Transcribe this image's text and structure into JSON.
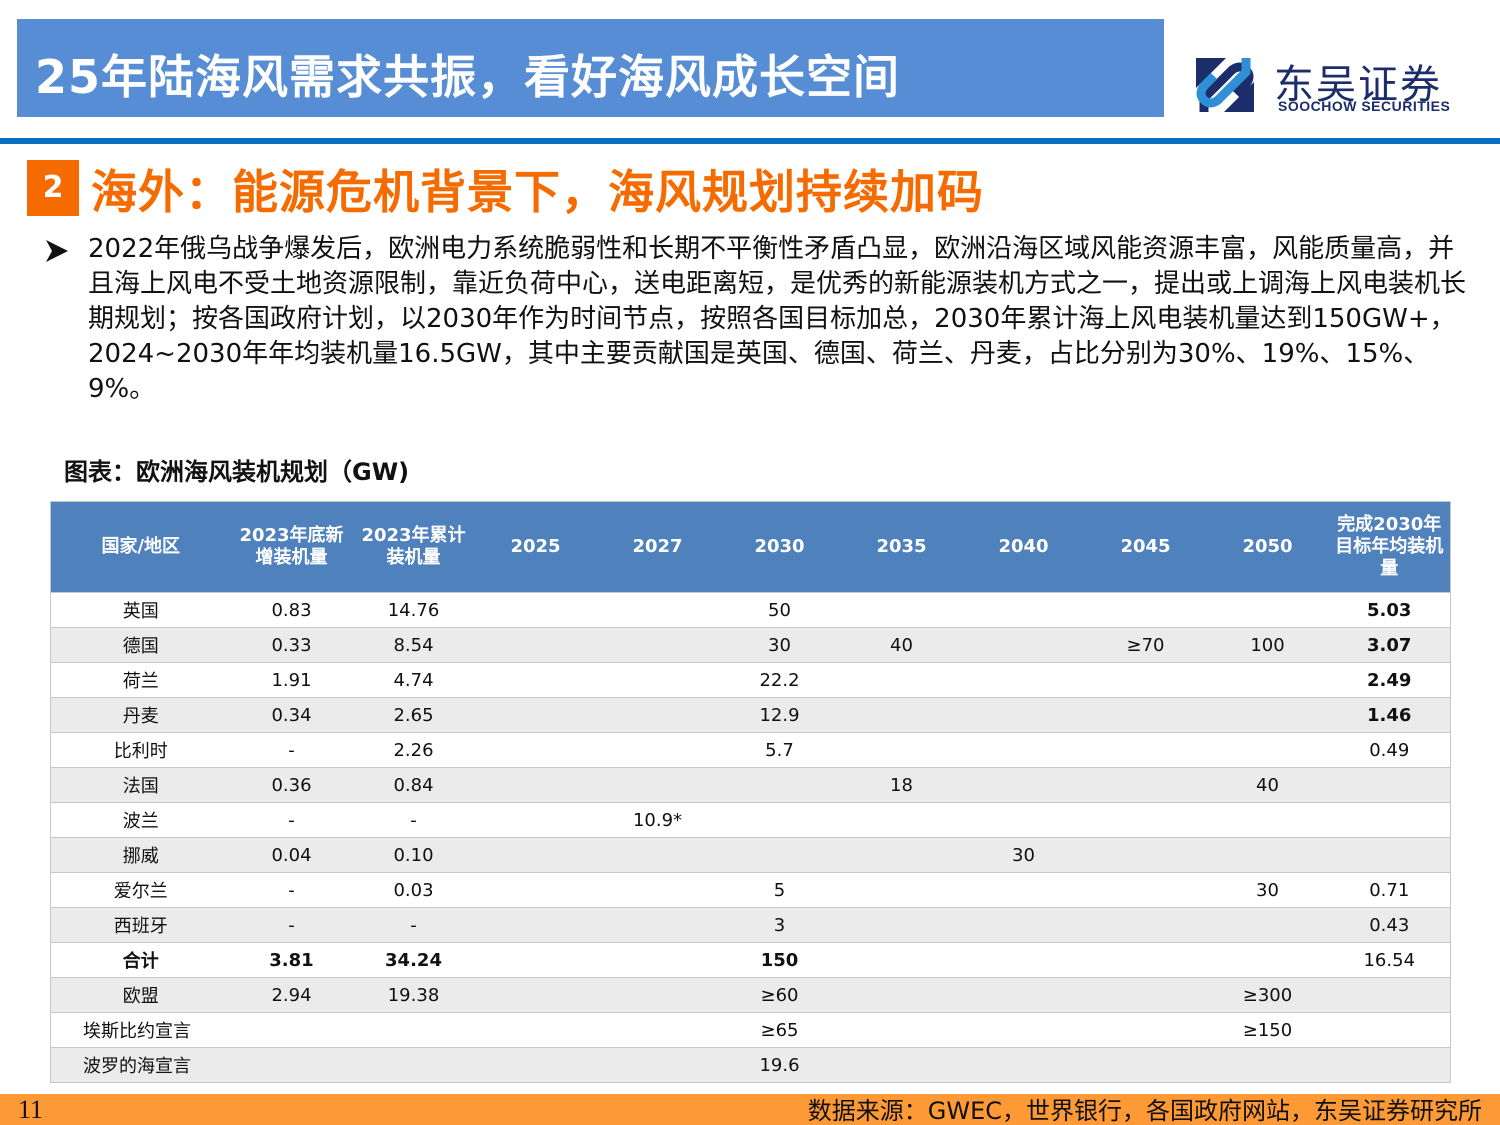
{
  "header": {
    "title": "25年陆海风需求共振，看好海风成长空间",
    "logo": {
      "cn": "东吴证券",
      "en": "SOOCHOW SECURITIES"
    }
  },
  "section": {
    "number": "2",
    "title": "海外：能源危机背景下，海风规划持续加码"
  },
  "bullet": {
    "text": "2022年俄乌战争爆发后，欧洲电力系统脆弱性和长期不平衡性矛盾凸显，欧洲沿海区域风能资源丰富，风能质量高，并且海上风电不受土地资源限制，靠近负荷中心，送电距离短，是优秀的新能源装机方式之一，提出或上调海上风电装机长期规划；按各国政府计划，以2030年作为时间节点，按照各国目标加总，2030年累计海上风电装机量达到150GW+，2024~2030年年均装机量16.5GW，其中主要贡献国是英国、德国、荷兰、丹麦，占比分别为30%、19%、15%、9%。"
  },
  "table": {
    "caption": "图表：欧洲海风装机规划（GW)",
    "headers": [
      "国家/地区",
      "2023年底新增装机量",
      "2023年累计装机量",
      "2025",
      "2027",
      "2030",
      "2035",
      "2040",
      "2045",
      "2050",
      "完成2030年目标年均装机量"
    ],
    "rows": [
      [
        "英国",
        "0.83",
        "14.76",
        "",
        "",
        "50",
        "",
        "",
        "",
        "",
        "5.03"
      ],
      [
        "德国",
        "0.33",
        "8.54",
        "",
        "",
        "30",
        "40",
        "",
        "≥70",
        "100",
        "3.07"
      ],
      [
        "荷兰",
        "1.91",
        "4.74",
        "",
        "",
        "22.2",
        "",
        "",
        "",
        "",
        "2.49"
      ],
      [
        "丹麦",
        "0.34",
        "2.65",
        "",
        "",
        "12.9",
        "",
        "",
        "",
        "",
        "1.46"
      ],
      [
        "比利时",
        "-",
        "2.26",
        "",
        "",
        "5.7",
        "",
        "",
        "",
        "",
        "0.49"
      ],
      [
        "法国",
        "0.36",
        "0.84",
        "",
        "",
        "",
        "18",
        "",
        "",
        "40",
        ""
      ],
      [
        "波兰",
        "-",
        "-",
        "",
        "10.9*",
        "",
        "",
        "",
        "",
        "",
        ""
      ],
      [
        "挪威",
        "0.04",
        "0.10",
        "",
        "",
        "",
        "",
        "30",
        "",
        "",
        ""
      ],
      [
        "爱尔兰",
        "-",
        "0.03",
        "",
        "",
        "5",
        "",
        "",
        "",
        "30",
        "0.71"
      ],
      [
        "西班牙",
        "-",
        "-",
        "",
        "",
        "3",
        "",
        "",
        "",
        "",
        "0.43"
      ],
      [
        "合计",
        "3.81",
        "34.24",
        "",
        "",
        "150",
        "",
        "",
        "",
        "",
        "16.54"
      ],
      [
        "欧盟",
        "2.94",
        "19.38",
        "",
        "",
        "≥60",
        "",
        "",
        "",
        "≥300",
        ""
      ],
      [
        "埃斯比约宣言",
        "",
        "",
        "",
        "",
        "≥65",
        "",
        "",
        "",
        "≥150",
        ""
      ],
      [
        "波罗的海宣言",
        "",
        "",
        "",
        "",
        "19.6",
        "",
        "",
        "",
        "",
        ""
      ]
    ]
  },
  "footer": {
    "page": "11",
    "source": "数据来源：GWEC，世界银行，各国政府网站，东吴证券研究所"
  },
  "colors": {
    "title_bar": "#568dd4",
    "divider": "#0a6fc1",
    "accent_orange": "#f56b00",
    "table_header": "#4f81bd",
    "row_alt": "#ebebeb",
    "footer": "#fe9a36",
    "logo_navy": "#1b2e6a"
  }
}
